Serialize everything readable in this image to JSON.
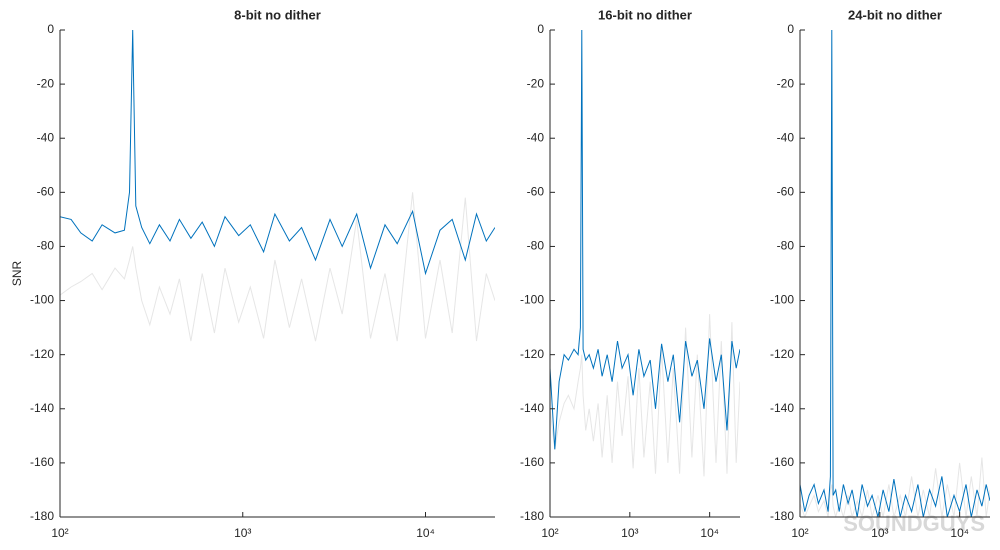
{
  "chart_data": [
    {
      "type": "line",
      "title": "8-bit no dither",
      "ylabel": "SNR",
      "log_x": true,
      "xlim": [
        100,
        24000
      ],
      "ylim": [
        -180,
        0
      ],
      "xticks": [
        {
          "value": 100,
          "label": "10²"
        },
        {
          "value": 1000,
          "label": "10³"
        },
        {
          "value": 10000,
          "label": "10⁴"
        }
      ],
      "yticks": [
        0,
        -20,
        -40,
        -60,
        -80,
        -100,
        -120,
        -140,
        -160,
        -180
      ],
      "x": [
        100,
        115,
        130,
        150,
        170,
        200,
        225,
        240,
        250,
        260,
        280,
        310,
        350,
        400,
        450,
        520,
        600,
        700,
        800,
        950,
        1100,
        1300,
        1500,
        1800,
        2100,
        2500,
        3000,
        3500,
        4200,
        5000,
        6000,
        7000,
        8500,
        10000,
        12000,
        14000,
        16500,
        19000,
        21500,
        24000
      ],
      "series": [
        {
          "color": "#e6e6e6",
          "values": [
            -98,
            -95,
            -93,
            -90,
            -96,
            -88,
            -92,
            -85,
            -80,
            -88,
            -100,
            -109,
            -95,
            -105,
            -92,
            -115,
            -90,
            -112,
            -88,
            -108,
            -95,
            -114,
            -85,
            -110,
            -92,
            -115,
            -88,
            -105,
            -70,
            -114,
            -90,
            -115,
            -60,
            -114,
            -85,
            -112,
            -62,
            -115,
            -90,
            -100
          ]
        },
        {
          "color": "#0072bd",
          "values": [
            -69,
            -70,
            -75,
            -78,
            -72,
            -75,
            -74,
            -60,
            0,
            -65,
            -73,
            -79,
            -72,
            -78,
            -70,
            -77,
            -71,
            -80,
            -69,
            -76,
            -72,
            -82,
            -68,
            -78,
            -73,
            -85,
            -70,
            -80,
            -68,
            -88,
            -72,
            -79,
            -67,
            -90,
            -74,
            -70,
            -85,
            -68,
            -78,
            -73
          ]
        }
      ]
    },
    {
      "type": "line",
      "title": "16-bit no dither",
      "log_x": true,
      "xlim": [
        100,
        24000
      ],
      "ylim": [
        -180,
        0
      ],
      "xticks": [
        {
          "value": 100,
          "label": "10²"
        },
        {
          "value": 1000,
          "label": "10³"
        },
        {
          "value": 10000,
          "label": "10⁴"
        }
      ],
      "yticks": [
        0,
        -20,
        -40,
        -60,
        -80,
        -100,
        -120,
        -140,
        -160,
        -180
      ],
      "x": [
        100,
        115,
        130,
        150,
        170,
        200,
        225,
        240,
        250,
        260,
        280,
        310,
        350,
        400,
        450,
        520,
        600,
        700,
        800,
        950,
        1100,
        1300,
        1500,
        1800,
        2100,
        2500,
        3000,
        3500,
        4200,
        5000,
        6000,
        7000,
        8500,
        10000,
        12000,
        14000,
        16500,
        19000,
        21500,
        24000
      ],
      "series": [
        {
          "color": "#e6e6e6",
          "values": [
            -140,
            -155,
            -145,
            -138,
            -135,
            -140,
            -130,
            -125,
            -120,
            -135,
            -148,
            -140,
            -152,
            -138,
            -158,
            -135,
            -160,
            -130,
            -150,
            -128,
            -162,
            -125,
            -158,
            -130,
            -164,
            -118,
            -160,
            -125,
            -164,
            -110,
            -158,
            -120,
            -165,
            -105,
            -160,
            -115,
            -164,
            -108,
            -160,
            -130
          ]
        },
        {
          "color": "#0072bd",
          "values": [
            -125,
            -155,
            -130,
            -120,
            -122,
            -118,
            -120,
            -110,
            0,
            -118,
            -122,
            -120,
            -125,
            -118,
            -128,
            -120,
            -130,
            -115,
            -125,
            -120,
            -135,
            -118,
            -128,
            -122,
            -140,
            -116,
            -130,
            -120,
            -145,
            -115,
            -128,
            -122,
            -140,
            -114,
            -130,
            -120,
            -148,
            -115,
            -125,
            -118
          ]
        }
      ]
    },
    {
      "type": "line",
      "title": "24-bit no dither",
      "log_x": true,
      "xlim": [
        100,
        24000
      ],
      "ylim": [
        -180,
        0
      ],
      "xticks": [
        {
          "value": 100,
          "label": "10²"
        },
        {
          "value": 1000,
          "label": "10³"
        },
        {
          "value": 10000,
          "label": "10⁴"
        }
      ],
      "yticks": [
        0,
        -20,
        -40,
        -60,
        -80,
        -100,
        -120,
        -140,
        -160,
        -180
      ],
      "x": [
        100,
        115,
        130,
        150,
        170,
        200,
        225,
        240,
        250,
        260,
        280,
        310,
        350,
        400,
        450,
        520,
        600,
        700,
        800,
        950,
        1100,
        1300,
        1500,
        1800,
        2100,
        2500,
        3000,
        3500,
        4200,
        5000,
        6000,
        7000,
        8500,
        10000,
        12000,
        14000,
        16500,
        19000,
        21500,
        24000
      ],
      "series": [
        {
          "color": "#e6e6e6",
          "values": [
            -175,
            -180,
            -176,
            -172,
            -178,
            -174,
            -180,
            -170,
            -168,
            -176,
            -180,
            -175,
            -180,
            -172,
            -180,
            -174,
            -180,
            -170,
            -180,
            -172,
            -180,
            -168,
            -180,
            -172,
            -180,
            -165,
            -180,
            -170,
            -180,
            -162,
            -180,
            -168,
            -180,
            -160,
            -180,
            -165,
            -180,
            -158,
            -180,
            -170
          ]
        },
        {
          "color": "#0072bd",
          "values": [
            -168,
            -178,
            -172,
            -168,
            -175,
            -170,
            -178,
            -165,
            0,
            -172,
            -170,
            -178,
            -168,
            -175,
            -170,
            -180,
            -168,
            -176,
            -172,
            -180,
            -170,
            -178,
            -166,
            -180,
            -172,
            -178,
            -168,
            -180,
            -170,
            -176,
            -165,
            -180,
            -172,
            -178,
            -168,
            -180,
            -170,
            -176,
            -168,
            -174
          ]
        }
      ]
    }
  ],
  "watermark": "SOUNDGUYS"
}
